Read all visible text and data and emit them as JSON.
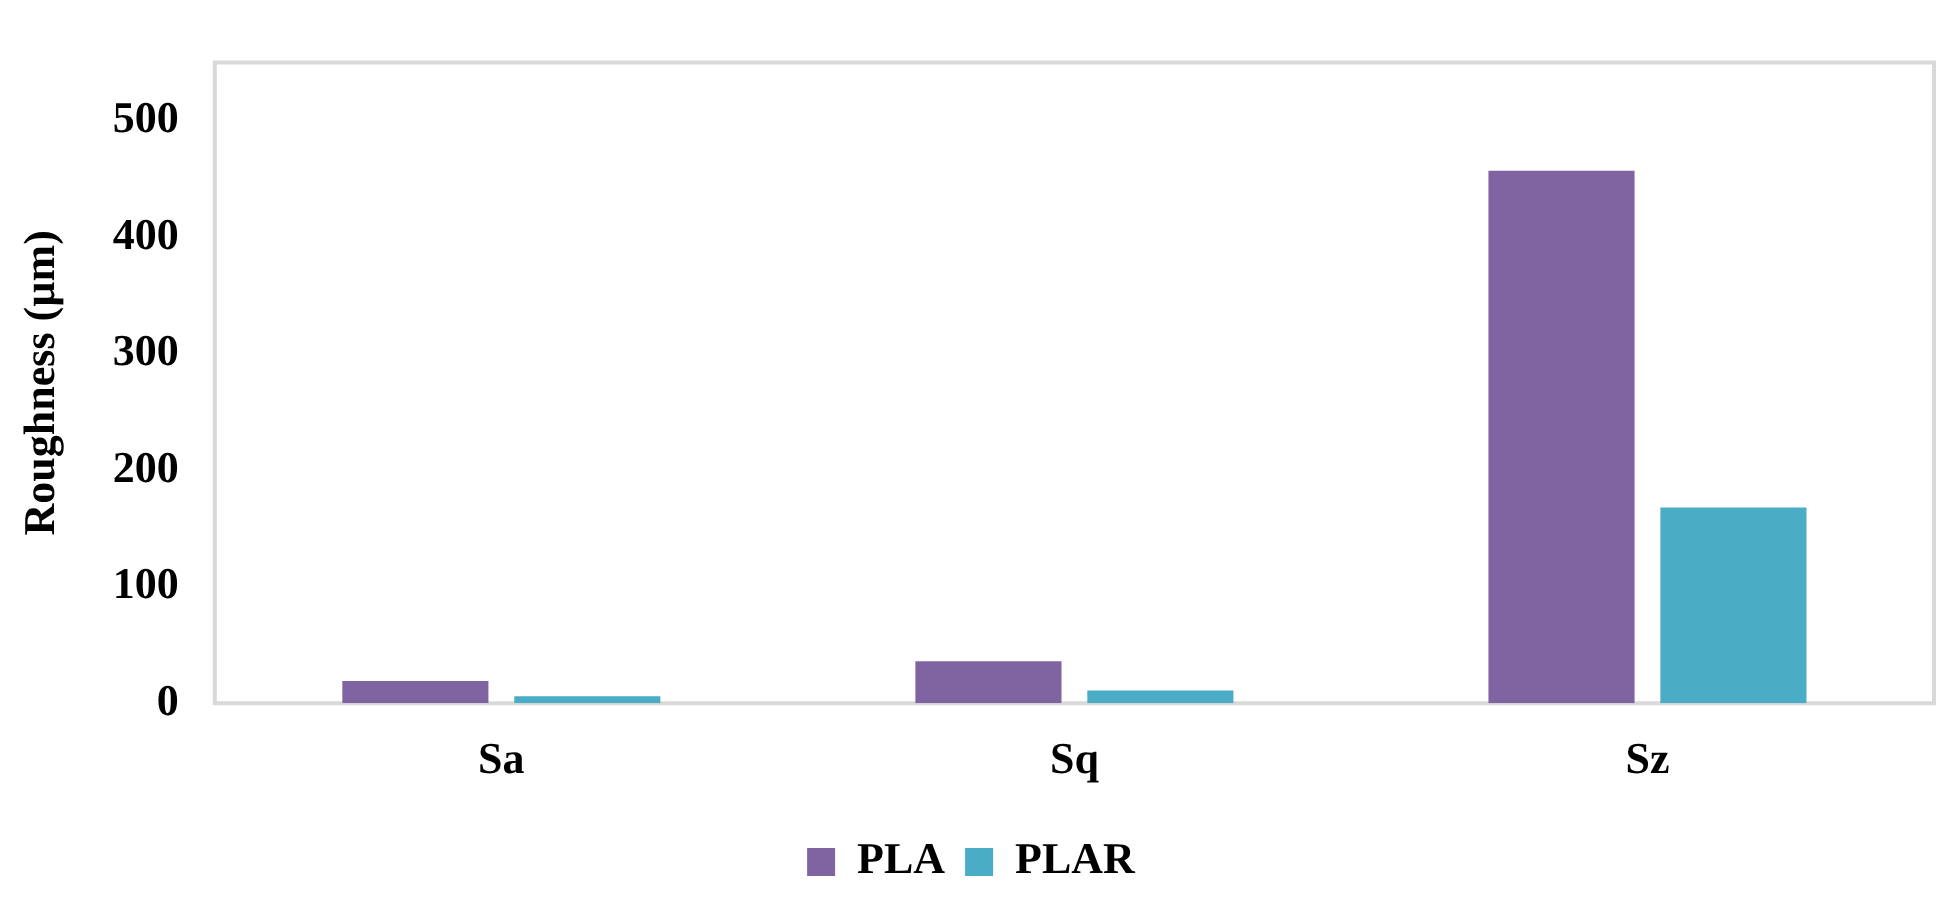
{
  "chart_data": {
    "type": "bar",
    "ylabel": "Roughness (µm)",
    "categories": [
      "Sa",
      "Sq",
      "Sz"
    ],
    "series": [
      {
        "name": "PLA",
        "color": "#8064a2",
        "values": [
          19,
          36,
          457
        ]
      },
      {
        "name": "PLAR",
        "color": "#4bacc6",
        "values": [
          6,
          11,
          168
        ]
      }
    ],
    "ylim": [
      0,
      550
    ],
    "yticks": [
      0,
      100,
      200,
      300,
      400,
      500
    ],
    "grid": false,
    "legend": "bottom"
  }
}
